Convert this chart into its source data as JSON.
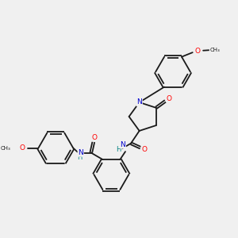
{
  "bg_color": "#f0f0f0",
  "bond_color": "#1a1a1a",
  "atom_colors": {
    "O": "#ff0000",
    "N": "#0000cc",
    "H": "#008080",
    "C": "#1a1a1a"
  },
  "figsize": [
    3.0,
    3.0
  ],
  "dpi": 100
}
